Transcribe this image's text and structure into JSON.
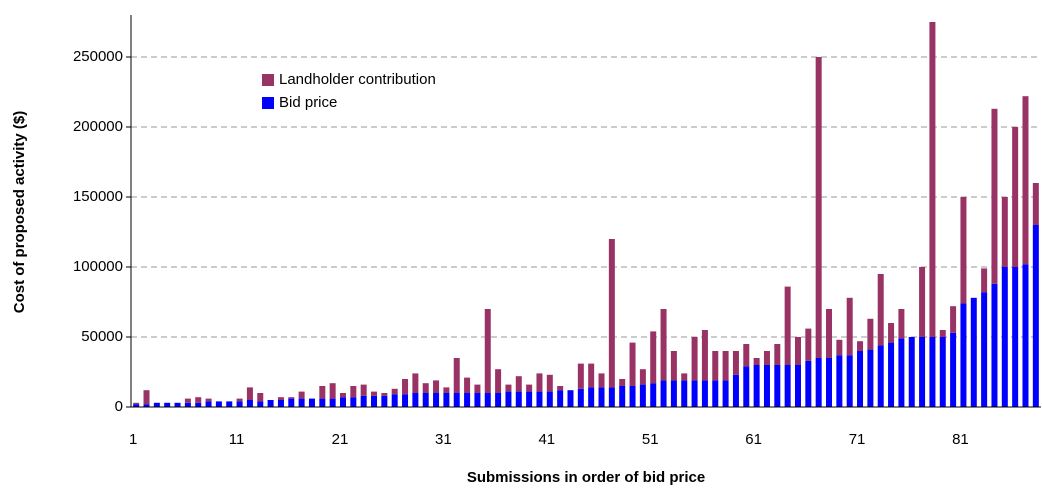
{
  "chart_data": {
    "type": "stacked_bar",
    "xlabel": "Submissions in order of bid price",
    "ylabel": "Cost of proposed activity ($)",
    "categories": [
      "1",
      null,
      null,
      null,
      null,
      null,
      null,
      null,
      null,
      null,
      "11",
      null,
      null,
      null,
      null,
      null,
      null,
      null,
      null,
      null,
      "21",
      null,
      null,
      null,
      null,
      null,
      null,
      null,
      null,
      null,
      "31",
      null,
      null,
      null,
      null,
      null,
      null,
      null,
      null,
      null,
      "41",
      null,
      null,
      null,
      null,
      null,
      null,
      null,
      null,
      null,
      "51",
      null,
      null,
      null,
      null,
      null,
      null,
      null,
      null,
      null,
      "61",
      null,
      null,
      null,
      null,
      null,
      null,
      null,
      null,
      null,
      "71",
      null,
      null,
      null,
      null,
      null,
      null,
      null,
      null,
      null,
      "81",
      null,
      null,
      null,
      null,
      null,
      null,
      null
    ],
    "series": [
      {
        "name": "Bid price",
        "color": "#0000ff",
        "values": [
          2000,
          2000,
          3000,
          3000,
          3000,
          3000,
          3000,
          4000,
          4000,
          4000,
          4000,
          5000,
          4000,
          5000,
          5000,
          6000,
          6000,
          6000,
          6000,
          6000,
          7000,
          7000,
          8000,
          8000,
          8000,
          9000,
          9000,
          10000,
          10000,
          10000,
          10000,
          10000,
          10000,
          10000,
          10000,
          10000,
          11000,
          11000,
          11000,
          11000,
          11000,
          12000,
          12000,
          13000,
          14000,
          14000,
          14000,
          15000,
          15000,
          16000,
          17000,
          19000,
          19000,
          19000,
          19000,
          19000,
          19000,
          19000,
          23000,
          29000,
          30000,
          30000,
          30000,
          30000,
          30000,
          33000,
          35000,
          35000,
          37000,
          37000,
          40000,
          41000,
          44000,
          46000,
          49000,
          50000,
          50000,
          50000,
          50000,
          53000,
          74000,
          78000,
          82000,
          88000,
          100000,
          100000,
          102000,
          130000
        ]
      },
      {
        "name": "Landholder contribution",
        "color": "#993366",
        "values": [
          1000,
          10000,
          0,
          0,
          0,
          3000,
          4000,
          2000,
          0,
          0,
          2000,
          9000,
          6000,
          0,
          2000,
          1000,
          5000,
          0,
          9000,
          11000,
          3000,
          8000,
          8000,
          3000,
          2000,
          4000,
          11000,
          14000,
          7000,
          9000,
          4000,
          25000,
          11000,
          6000,
          60000,
          17000,
          5000,
          11000,
          5000,
          13000,
          12000,
          3000,
          0,
          18000,
          17000,
          10000,
          106000,
          5000,
          31000,
          11000,
          37000,
          51000,
          21000,
          5000,
          31000,
          36000,
          21000,
          21000,
          17000,
          16000,
          5000,
          10000,
          15000,
          56000,
          20000,
          23000,
          215000,
          35000,
          11000,
          41000,
          7000,
          22000,
          51000,
          14000,
          21000,
          0,
          50000,
          225000,
          5000,
          19000,
          76000,
          0,
          17000,
          125000,
          50000,
          100000,
          120000,
          30000
        ]
      }
    ],
    "ylim": [
      0,
      280000
    ],
    "yticks": [
      0,
      50000,
      100000,
      150000,
      200000,
      250000
    ],
    "grid": true,
    "legend": "upper left"
  }
}
